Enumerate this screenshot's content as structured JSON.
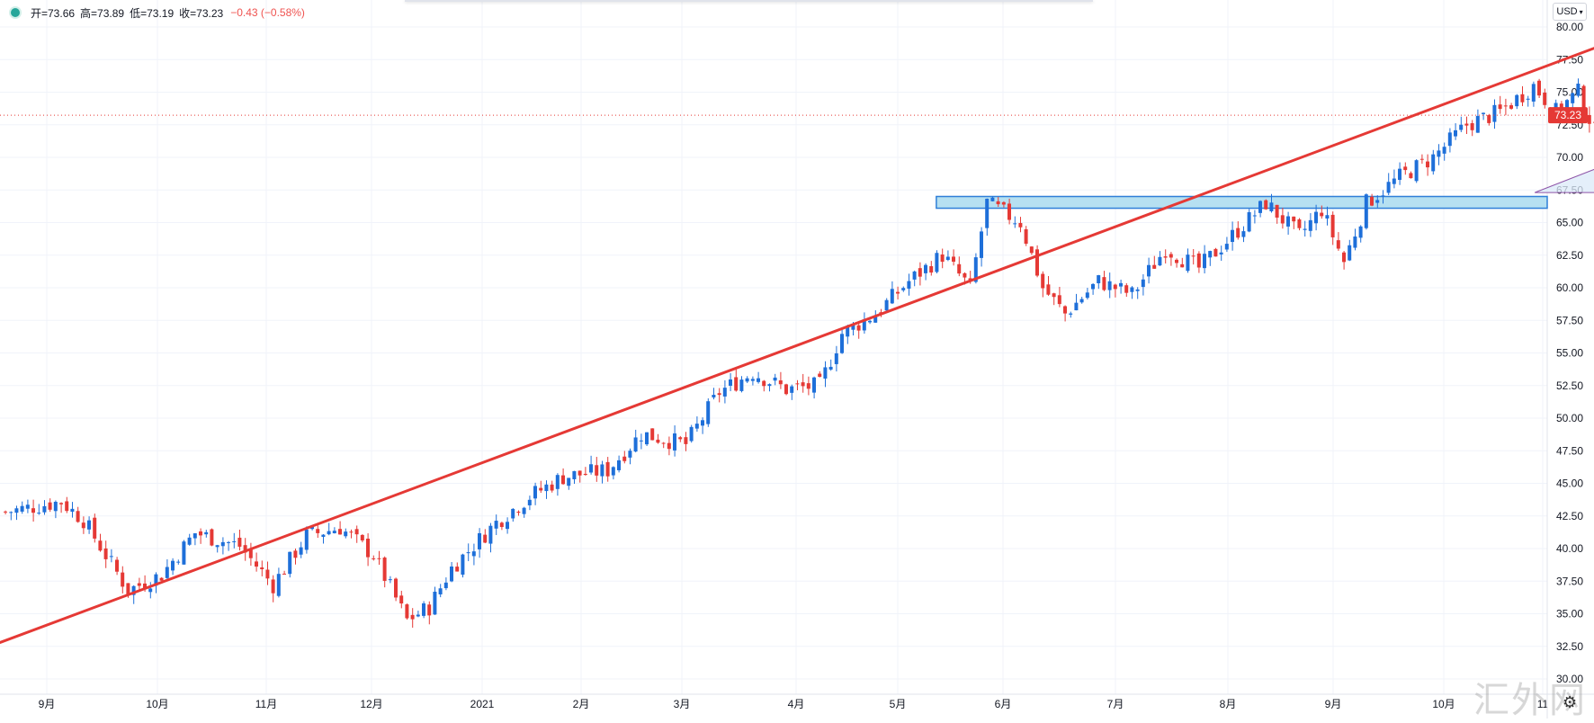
{
  "header": {
    "open_label": "开=73.66",
    "high_label": "高=73.89",
    "low_label": "低=73.19",
    "close_label": "收=73.23",
    "change_label": "−0.43 (−0.58%)",
    "currency": "USD"
  },
  "watermark": "汇外网",
  "colors": {
    "up": "#1e6fd9",
    "down": "#e53935",
    "trendline": "#e53935",
    "zone_fill": "#a9dbee",
    "zone_border": "#2f7fd8",
    "triangle_fill": "#dbe9f8",
    "triangle_border": "#8e54a8",
    "arrow": "#e53935"
  },
  "chart_data": {
    "type": "candlestick",
    "ylim": [
      30,
      80
    ],
    "y_ticks": [
      "30.00",
      "32.50",
      "35.00",
      "37.50",
      "40.00",
      "42.50",
      "45.00",
      "47.50",
      "50.00",
      "52.50",
      "55.00",
      "57.50",
      "60.00",
      "62.50",
      "65.00",
      "67.50",
      "70.00",
      "72.50",
      "75.00",
      "77.50",
      "80.00"
    ],
    "x_labels": [
      "9月",
      "10月",
      "11月",
      "12月",
      "2021",
      "2月",
      "3月",
      "4月",
      "5月",
      "6月",
      "7月",
      "8月",
      "9月",
      "10月",
      "11"
    ],
    "last_price": 73.23,
    "last_price_label": "73.23",
    "waypoints": [
      [
        0,
        42.8
      ],
      [
        10,
        43.6
      ],
      [
        14,
        42.2
      ],
      [
        22,
        36.8
      ],
      [
        28,
        38.0
      ],
      [
        34,
        41.2
      ],
      [
        42,
        40.2
      ],
      [
        48,
        37.2
      ],
      [
        54,
        41.0
      ],
      [
        60,
        41.6
      ],
      [
        66,
        39.5
      ],
      [
        72,
        34.5
      ],
      [
        76,
        35.5
      ],
      [
        80,
        38.5
      ],
      [
        88,
        42.0
      ],
      [
        94,
        44.0
      ],
      [
        100,
        45.5
      ],
      [
        108,
        46.0
      ],
      [
        114,
        48.8
      ],
      [
        122,
        48.0
      ],
      [
        128,
        52.0
      ],
      [
        134,
        53.5
      ],
      [
        140,
        52.2
      ],
      [
        146,
        52.5
      ],
      [
        150,
        56.5
      ],
      [
        156,
        58.0
      ],
      [
        162,
        60.5
      ],
      [
        168,
        62.5
      ],
      [
        173,
        60.0
      ],
      [
        176,
        66.5
      ],
      [
        182,
        65.0
      ],
      [
        186,
        60.0
      ],
      [
        190,
        58.0
      ],
      [
        196,
        60.5
      ],
      [
        202,
        59.5
      ],
      [
        208,
        63.0
      ],
      [
        214,
        61.5
      ],
      [
        220,
        64.0
      ],
      [
        226,
        66.5
      ],
      [
        232,
        64.0
      ],
      [
        236,
        66.0
      ],
      [
        240,
        62.0
      ],
      [
        244,
        66.5
      ],
      [
        250,
        68.5
      ],
      [
        256,
        70.0
      ],
      [
        262,
        72.5
      ],
      [
        268,
        73.5
      ],
      [
        274,
        75.5
      ],
      [
        278,
        73.5
      ],
      [
        282,
        75.0
      ],
      [
        285,
        72.0
      ],
      [
        287,
        70.0
      ],
      [
        288,
        66.5
      ],
      [
        290,
        69.0
      ],
      [
        294,
        72.0
      ],
      [
        300,
        73.7
      ],
      [
        301,
        73.23
      ]
    ],
    "trendline": [
      [
        -6.7,
        31.8
      ],
      [
        289.3,
        79.0
      ]
    ],
    "resistance_zone": {
      "y_low": 66.1,
      "y_high": 67.0,
      "x_start": 167.4
    },
    "triangle": [
      [
        274.7,
        67.3
      ],
      [
        331.6,
        76.8
      ],
      [
        331.6,
        67.3
      ]
    ],
    "arrow": {
      "from": [
        307.5,
        72.9
      ],
      "to": [
        314.1,
        68.0
      ]
    }
  }
}
